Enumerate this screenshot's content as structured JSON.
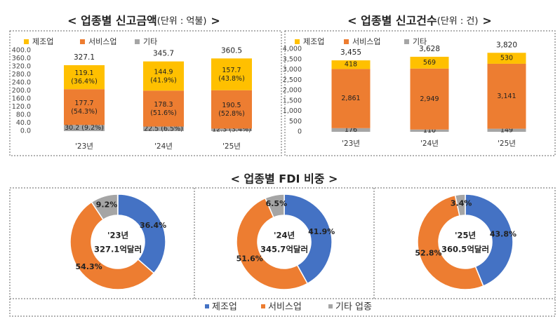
{
  "chart_data": [
    {
      "type": "bar",
      "stacked": true,
      "title": "< 업종별 신고금액",
      "unit": "(단위 : 억불)",
      "title_close": ">",
      "categories": [
        "'23년",
        "'24년",
        "'25년"
      ],
      "series": [
        {
          "name": "제조업",
          "color": "#ffc000",
          "values": [
            119.1,
            144.9,
            157.7
          ],
          "value_labels": [
            "119.1\n(36.4%)",
            "144.9\n(41.9%)",
            "157.7\n(43.8%)"
          ]
        },
        {
          "name": "서비스업",
          "color": "#ed7d31",
          "values": [
            177.7,
            178.3,
            190.5
          ],
          "value_labels": [
            "177.7\n(54.3%)",
            "178.3\n(51.6%)",
            "190.5\n(52.8%)"
          ]
        },
        {
          "name": "기타",
          "color": "#a5a5a5",
          "values": [
            30.2,
            22.5,
            12.3
          ],
          "value_labels": [
            "30.2 (9.2%)",
            "22.5 (6.5%)",
            "12.3 (3.4%)"
          ]
        }
      ],
      "totals": [
        327.1,
        345.7,
        360.5
      ],
      "ylim": [
        0,
        400
      ],
      "yticks": [
        {
          "value": 0,
          "label": "0.0"
        },
        {
          "value": 40,
          "label": "40.0"
        },
        {
          "value": 80,
          "label": "80.0"
        },
        {
          "value": 120,
          "label": "120.0"
        },
        {
          "value": 160,
          "label": "160.0"
        },
        {
          "value": 200,
          "label": "200.0"
        },
        {
          "value": 240,
          "label": "240.0"
        },
        {
          "value": 280,
          "label": "280.0"
        },
        {
          "value": 320,
          "label": "320.0"
        },
        {
          "value": 360,
          "label": "360.0"
        },
        {
          "value": 400,
          "label": "400.0"
        }
      ]
    },
    {
      "type": "bar",
      "stacked": true,
      "title": "< 업종별 신고건수",
      "unit": "(단위 : 건)",
      "title_close": ">",
      "categories": [
        "'23년",
        "'24년",
        "'25년"
      ],
      "series": [
        {
          "name": "제조업",
          "color": "#ffc000",
          "values": [
            418,
            569,
            530
          ],
          "value_labels": [
            "418",
            "569",
            "530"
          ]
        },
        {
          "name": "서비스업",
          "color": "#ed7d31",
          "values": [
            2861,
            2949,
            3141
          ],
          "value_labels": [
            "2,861",
            "2,949",
            "3,141"
          ]
        },
        {
          "name": "기타",
          "color": "#a5a5a5",
          "values": [
            176,
            110,
            149
          ],
          "value_labels": [
            "176",
            "110",
            "149"
          ]
        }
      ],
      "totals": [
        3455,
        3628,
        3820
      ],
      "total_labels": [
        "3,455",
        "3,628",
        "3,820"
      ],
      "ylim": [
        0,
        4000
      ],
      "yticks": [
        0,
        500,
        {
          "value": 1000,
          "label": "1,000"
        },
        {
          "value": 1500,
          "label": "1,500"
        },
        {
          "value": 2000,
          "label": "2,000"
        },
        {
          "value": 2500,
          "label": "2,500"
        },
        {
          "value": 3000,
          "label": "3,000"
        },
        {
          "value": 3500,
          "label": "3,500"
        },
        {
          "value": 4000,
          "label": "4,000"
        }
      ]
    },
    {
      "type": "pie",
      "donut": true,
      "center_label": [
        "'23년",
        "327.1억달러"
      ],
      "colors": [
        "#4472c4",
        "#ed7d31",
        "#a5a5a5"
      ],
      "values": [
        36.4,
        54.3,
        9.2
      ],
      "value_labels": [
        "36.4%",
        "54.3%",
        "9.2%"
      ]
    },
    {
      "type": "pie",
      "donut": true,
      "center_label": [
        "'24년",
        "345.7억달러"
      ],
      "colors": [
        "#4472c4",
        "#ed7d31",
        "#a5a5a5"
      ],
      "values": [
        41.9,
        51.6,
        6.5
      ],
      "value_labels": [
        "41.9%",
        "51.6%",
        "6.5%"
      ]
    },
    {
      "type": "pie",
      "donut": true,
      "center_label": [
        "'25년",
        "360.5억달러"
      ],
      "colors": [
        "#4472c4",
        "#ed7d31",
        "#a5a5a5"
      ],
      "values": [
        43.8,
        52.8,
        3.4
      ],
      "value_labels": [
        "43.8%",
        "52.8%",
        "3.4%"
      ]
    }
  ],
  "fdi_section": {
    "title": "< 업종별 FDI 비중 >",
    "legend": [
      {
        "name": "제조업",
        "color": "#4472c4"
      },
      {
        "name": "서비스업",
        "color": "#ed7d31"
      },
      {
        "name": "기타 업종",
        "color": "#a5a5a5"
      }
    ]
  }
}
